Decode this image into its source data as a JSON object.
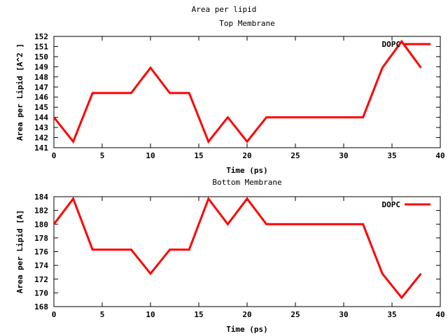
{
  "title": "Area per lipid",
  "chart_data": [
    {
      "type": "line",
      "title": "Top Membrane",
      "xlabel": "Time (ps)",
      "ylabel": "Area per Lipid [A^2 ]",
      "xlim": [
        0,
        40
      ],
      "ylim": [
        141,
        152
      ],
      "xticks": [
        0,
        5,
        10,
        15,
        20,
        25,
        30,
        35,
        40
      ],
      "yticks": [
        141,
        142,
        143,
        144,
        145,
        146,
        147,
        148,
        149,
        150,
        151,
        152
      ],
      "grid": false,
      "legend": "top-right",
      "series": [
        {
          "name": "DOPC",
          "color": "#ff0000",
          "x": [
            0,
            2,
            4,
            6,
            8,
            10,
            12,
            14,
            16,
            18,
            20,
            22,
            24,
            26,
            28,
            30,
            32,
            34,
            36,
            38
          ],
          "y": [
            144.0,
            141.6,
            146.4,
            146.4,
            146.4,
            148.9,
            146.4,
            146.4,
            141.6,
            144.0,
            141.6,
            144.0,
            144.0,
            144.0,
            144.0,
            144.0,
            144.0,
            148.9,
            151.5,
            148.9
          ]
        }
      ]
    },
    {
      "type": "line",
      "title": "Bottom Membrane",
      "xlabel": "Time (ps)",
      "ylabel": "Area per Lipid [A]",
      "xlim": [
        0,
        40
      ],
      "ylim": [
        168,
        184
      ],
      "xticks": [
        0,
        5,
        10,
        15,
        20,
        25,
        30,
        35,
        40
      ],
      "yticks": [
        168,
        170,
        172,
        174,
        176,
        178,
        180,
        182,
        184
      ],
      "grid": false,
      "legend": "top-right",
      "series": [
        {
          "name": "DOPC",
          "color": "#ff0000",
          "x": [
            0,
            2,
            4,
            6,
            8,
            10,
            12,
            14,
            16,
            18,
            20,
            22,
            24,
            26,
            28,
            30,
            32,
            34,
            36,
            38
          ],
          "y": [
            180.0,
            183.7,
            176.3,
            176.3,
            176.3,
            172.8,
            176.3,
            176.3,
            183.7,
            180.0,
            183.7,
            180.0,
            180.0,
            180.0,
            180.0,
            180.0,
            180.0,
            172.8,
            169.3,
            172.8
          ]
        }
      ]
    }
  ]
}
